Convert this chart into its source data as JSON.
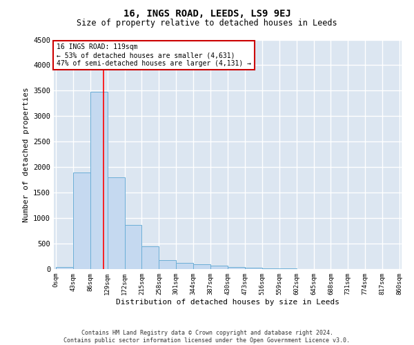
{
  "title": "16, INGS ROAD, LEEDS, LS9 9EJ",
  "subtitle": "Size of property relative to detached houses in Leeds",
  "xlabel": "Distribution of detached houses by size in Leeds",
  "ylabel": "Number of detached properties",
  "bar_color": "#c5d9f0",
  "bar_edge_color": "#6baed6",
  "background_color": "#dce6f1",
  "grid_color": "#ffffff",
  "red_line_x": 119,
  "annotation_line1": "16 INGS ROAD: 119sqm",
  "annotation_line2": "← 53% of detached houses are smaller (4,631)",
  "annotation_line3": "47% of semi-detached houses are larger (4,131) →",
  "annotation_box_color": "#ffffff",
  "annotation_box_edge": "#cc0000",
  "footer_line1": "Contains HM Land Registry data © Crown copyright and database right 2024.",
  "footer_line2": "Contains public sector information licensed under the Open Government Licence v3.0.",
  "bin_edges": [
    0,
    43,
    86,
    129,
    172,
    215,
    258,
    301,
    344,
    387,
    430,
    473,
    516,
    559,
    602,
    645,
    688,
    731,
    774,
    817,
    860
  ],
  "bar_heights": [
    45,
    1900,
    3480,
    1800,
    860,
    445,
    170,
    120,
    95,
    70,
    45,
    25,
    12,
    8,
    6,
    4,
    2,
    1,
    1,
    0
  ],
  "ylim": [
    0,
    4500
  ],
  "yticks": [
    0,
    500,
    1000,
    1500,
    2000,
    2500,
    3000,
    3500,
    4000,
    4500
  ]
}
